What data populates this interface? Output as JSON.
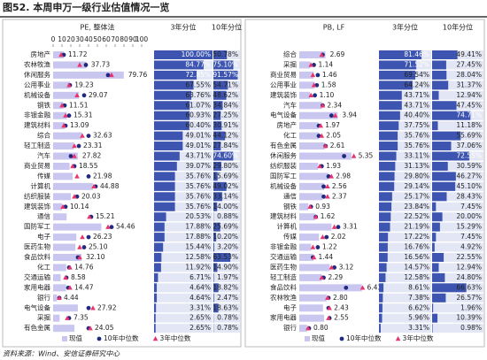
{
  "title": "图52. 本周申万一级行业估值情况一览",
  "source": "资料来源：Wind、安信证券研究中心",
  "chart_data": [
    {
      "type": "bar",
      "orientation": "horizontal",
      "title": "PE, 整体法",
      "categories": [
        "房地产",
        "农林牧渔",
        "休闲服务",
        "公用事业",
        "机械设备",
        "钢铁",
        "非银金融",
        "建筑材料",
        "综合",
        "轻工制造",
        "汽车",
        "商业贸易",
        "传媒",
        "计算机",
        "纺织服装",
        "建筑装饰",
        "通信",
        "国防军工",
        "电子",
        "医药生物",
        "食品饮料",
        "化工",
        "交通运输",
        "家用电器",
        "银行",
        "电气设备",
        "采掘",
        "有色金属"
      ],
      "series": [
        {
          "name": "现值",
          "color": "#c9c6f0",
          "marker": "bar",
          "values": [
            11.72,
            37.73,
            79.76,
            19.23,
            29.07,
            11.51,
            15.31,
            13.09,
            32.63,
            23.31,
            27.82,
            18.55,
            21.98,
            44.88,
            20.03,
            10.14,
            15.21,
            54.46,
            26.23,
            25.1,
            32.1,
            14.76,
            8.58,
            14.47,
            4.44,
            27.92,
            7.35,
            24.05
          ],
          "value_labels": [
            "11.72",
            "37.73",
            "79.76",
            "19.23",
            "29.07",
            "11.51",
            "15.31",
            "13.09",
            "32.63",
            "23.31",
            "27.82",
            "18.55",
            "21.98",
            "44.88",
            "20.03",
            "10.14",
            "15.21",
            "54.46",
            "26.23",
            "25.10",
            "32.10",
            "14.76",
            "8.58",
            "14.47",
            "4.44",
            "27.92",
            "7.35",
            "24.05"
          ]
        },
        {
          "name": "10年中位数",
          "color": "#1f2a80",
          "marker": "circle",
          "values": [
            12,
            37,
            62,
            19,
            35,
            13,
            18,
            14,
            40,
            29,
            20,
            24,
            40,
            48,
            27,
            14,
            43,
            66,
            40,
            35,
            28,
            18,
            15,
            17,
            7,
            40,
            18,
            40
          ]
        },
        {
          "name": "3年中位数",
          "color": "#e8336d",
          "marker": "triangle",
          "values": [
            9,
            30,
            66,
            18,
            27,
            10,
            14,
            12,
            33,
            24,
            24,
            22,
            27,
            46,
            24,
            11,
            41,
            62,
            33,
            30,
            30,
            19,
            14,
            19,
            7,
            45,
            16,
            42
          ]
        }
      ],
      "xlim": [
        0,
        100
      ],
      "xticks": [
        0,
        10,
        20,
        30,
        40,
        50,
        60,
        70,
        80,
        90,
        100
      ],
      "percentile_columns": [
        {
          "name": "3年分位",
          "color": "#3d55b0",
          "values": [
            100,
            84.77,
            72.85,
            67.55,
            63.76,
            61.07,
            60.93,
            60.4,
            49.01,
            49.01,
            43.71,
            39.07,
            35.76,
            35.76,
            35.76,
            35.76,
            20.53,
            17.88,
            17.88,
            15.44,
            12.58,
            11.92,
            6.71,
            4.64,
            4.64,
            3.31,
            2.65,
            2.65
          ],
          "value_labels": [
            "100.00%",
            "84.77%",
            "72.85%",
            "67.55%",
            "63.76%",
            "61.07%",
            "60.93%",
            "60.40%",
            "49.01%",
            "49.01%",
            "43.71%",
            "39.07%",
            "35.76%",
            "35.76%",
            "35.76%",
            "35.76%",
            "20.53%",
            "17.88%",
            "17.88%",
            "15.44%",
            "12.58%",
            "11.92%",
            "6.71%",
            "4.64%",
            "4.64%",
            "3.31%",
            "2.65%",
            "2.65%"
          ]
        },
        {
          "name": "10年分位",
          "color": "#3d55b0",
          "values": [
            50.78,
            75.1,
            91.57,
            54.71,
            48.62,
            34.84,
            27.25,
            30.91,
            44.12,
            27.84,
            74.6,
            29.8,
            15.69,
            49.02,
            33.14,
            14,
            0.88,
            25.69,
            10.2,
            3.2,
            63.53,
            14.9,
            1.97,
            18.82,
            2.47,
            18.63,
            0.78,
            0.78
          ],
          "value_labels": [
            "50.78%",
            "75.10%",
            "91.57%",
            "54.71%",
            "48.62%",
            "34.84%",
            "27.25%",
            "30.91%",
            "44.12%",
            "27.84%",
            "74.60%",
            "29.80%",
            "15.69%",
            "49.02%",
            "33.14%",
            "14.00%",
            "0.88%",
            "25.69%",
            "10.20%",
            "3.20%",
            "63.53%",
            "14.90%",
            "1.97%",
            "18.82%",
            "2.47%",
            "18.63%",
            "0.78%",
            "0.78%"
          ]
        }
      ]
    },
    {
      "type": "bar",
      "orientation": "horizontal",
      "title": "PB, LF",
      "categories": [
        "综合",
        "采掘",
        "商业贸易",
        "公用事业",
        "建筑装饰",
        "汽车",
        "电气设备",
        "房地产",
        "化工",
        "有色金属",
        "休闲服务",
        "纺织服装",
        "国防军工",
        "机械设备",
        "通信",
        "钢铁",
        "建筑材料",
        "计算机",
        "传媒",
        "非银金融",
        "交通运输",
        "医药生物",
        "轻工制造",
        "食品饮料",
        "农林牧渔",
        "电子",
        "家用电器",
        "银行"
      ],
      "series": [
        {
          "name": "现值",
          "color": "#c9c6f0",
          "marker": "bar",
          "values": [
            2.69,
            1.14,
            1.46,
            1.58,
            1.1,
            2.34,
            3.94,
            1.97,
            2.05,
            2.61,
            5.35,
            1.93,
            2.98,
            2.56,
            2.37,
            0.93,
            1.62,
            3.31,
            2.02,
            1.22,
            1.44,
            3.12,
            2.29,
            6.43,
            2.8,
            2.43,
            2.55,
            0.8
          ],
          "value_labels": [
            "2.69",
            "1.14",
            "1.46",
            "1.58",
            "1.10",
            "2.34",
            "3.94",
            "1.97",
            "2.05",
            "2.61",
            "5.35",
            "1.93",
            "2.98",
            "2.56",
            "2.37",
            "0.93",
            "1.62",
            "3.31",
            "2.02",
            "1.22",
            "1.44",
            "3.12",
            "2.29",
            "6.43",
            "2.80",
            "2.43",
            "2.55",
            "0.80"
          ]
        },
        {
          "name": "10年中位数",
          "color": "#1f2a80",
          "marker": "circle",
          "values": [
            2.4,
            1.5,
            1.9,
            1.8,
            1.6,
            2.4,
            3.3,
            2.0,
            2.0,
            2.7,
            4.6,
            2.3,
            3.0,
            2.5,
            2.5,
            1.2,
            1.7,
            4.0,
            2.8,
            1.9,
            1.4,
            3.6,
            2.5,
            4.8,
            3.0,
            3.0,
            3.1,
            1.0
          ]
        },
        {
          "name": "3年中位数",
          "color": "#e8336d",
          "marker": "triangle",
          "values": [
            2.3,
            1.2,
            1.4,
            1.5,
            1.2,
            2.4,
            3.7,
            2.2,
            2.3,
            2.7,
            5.6,
            2.1,
            3.3,
            2.9,
            2.9,
            1.1,
            1.7,
            3.6,
            2.4,
            1.4,
            1.5,
            3.3,
            2.3,
            6.5,
            2.9,
            3.1,
            3.0,
            0.9
          ]
        }
      ],
      "xlim": [
        0,
        7
      ],
      "percentile_columns": [
        {
          "name": "3年分位",
          "color": "#3d55b0",
          "values": [
            81.46,
            71.52,
            69.54,
            64.24,
            43.71,
            43.71,
            40.4,
            37.75,
            35.76,
            35.76,
            33.11,
            31.13,
            29.8,
            29.14,
            25.17,
            23.84,
            22.52,
            21.19,
            17.22,
            16.76,
            16.56,
            14.57,
            12.58,
            8.61,
            7.38,
            6.62,
            5.96,
            3.31
          ],
          "value_labels": [
            "81.46%",
            "71.52%",
            "69.54%",
            "64.24%",
            "43.71%",
            "43.71%",
            "40.40%",
            "37.75%",
            "35.76%",
            "35.76%",
            "33.11%",
            "31.13%",
            "29.80%",
            "29.14%",
            "25.17%",
            "23.84%",
            "22.52%",
            "21.19%",
            "17.22%",
            "16.76%",
            "16.56%",
            "14.57%",
            "12.58%",
            "8.61%",
            "7.38%",
            "6.62%",
            "5.96%",
            "3.31%"
          ]
        },
        {
          "name": "10年分位",
          "color": "#3d55b0",
          "values": [
            49.41,
            27.45,
            28.04,
            31.37,
            12.94,
            47.45,
            74.71,
            11.18,
            55.69,
            37.06,
            72.55,
            30.59,
            46.27,
            45.1,
            28.43,
            7.45,
            20,
            15.29,
            7.45,
            4.92,
            22.55,
            12.94,
            24.8,
            66.63,
            26.57,
            1.96,
            10.39,
            0.98
          ],
          "value_labels": [
            "49.41%",
            "27.45%",
            "28.04%",
            "31.37%",
            "12.94%",
            "47.45%",
            "74.71%",
            "11.18%",
            "55.69%",
            "37.06%",
            "72.55%",
            "30.59%",
            "46.27%",
            "45.10%",
            "28.43%",
            "7.45%",
            "20.00%",
            "15.29%",
            "7.45%",
            "4.92%",
            "22.55%",
            "12.94%",
            "24.80%",
            "66.63%",
            "26.57%",
            "1.96%",
            "10.39%",
            "0.98%"
          ]
        }
      ]
    }
  ]
}
